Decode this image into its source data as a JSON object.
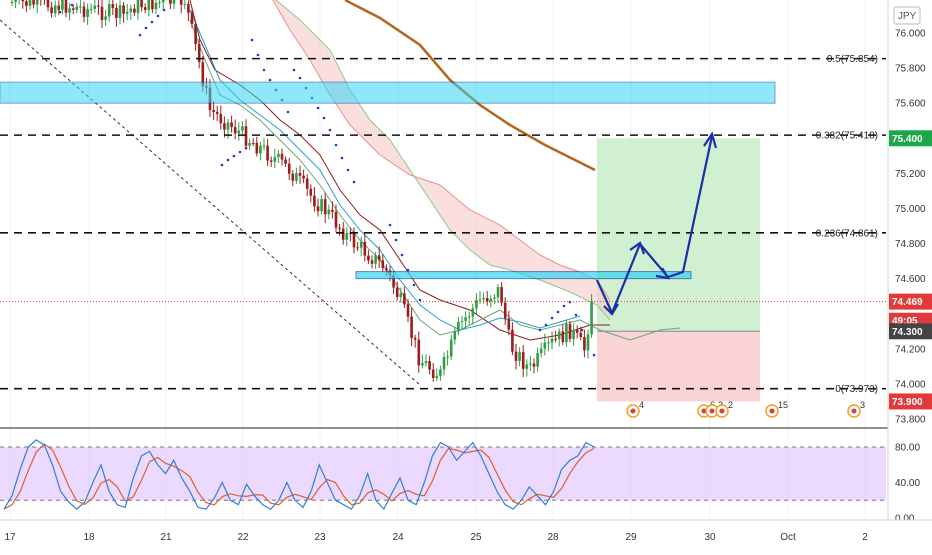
{
  "chart_data": {
    "type": "candlestick",
    "currency_badge": "JPY",
    "main_panel": {
      "ylim": [
        73.8,
        76.15
      ],
      "y_ticks": [
        "76.000",
        "75.800",
        "75.600",
        "75.400",
        "75.200",
        "75.000",
        "74.800",
        "74.600",
        "74.200",
        "74.000",
        "73.800"
      ],
      "x_days": [
        "17",
        "18",
        "21",
        "22",
        "23",
        "24",
        "25",
        "28",
        "29",
        "30",
        "Oct",
        "2"
      ],
      "fib_levels": [
        {
          "label": "0.5(75.854)",
          "value": 75.854
        },
        {
          "label": "0.382(75.418)",
          "value": 75.418
        },
        {
          "label": "0.236(74.861)",
          "value": 74.861
        },
        {
          "label": "0(73.973)",
          "value": 73.973
        }
      ],
      "resistance_zone": {
        "top": 75.72,
        "bottom": 75.6
      },
      "support_zone": {
        "top": 74.64,
        "bottom": 74.6
      },
      "long_position": {
        "entry": 74.3,
        "target": 75.4,
        "stop": 73.9
      },
      "price_tags": [
        {
          "text": "75.400",
          "value": 75.4,
          "color": "#1ba74a"
        },
        {
          "text": "74.469",
          "value": 74.469,
          "color": "#e03a3a"
        },
        {
          "text": "49:05",
          "value": 74.36,
          "color": "#e03a3a"
        },
        {
          "text": "74.300",
          "value": 74.3,
          "color": "#444444"
        },
        {
          "text": "73.900",
          "value": 73.9,
          "color": "#e03a3a"
        }
      ],
      "last_price": 74.469,
      "event_markers": [
        {
          "x": 641,
          "count": "4"
        },
        {
          "x": 712,
          "count": "6"
        },
        {
          "x": 720,
          "count": "3"
        },
        {
          "x": 730,
          "count": "2"
        },
        {
          "x": 780,
          "count": "15"
        },
        {
          "x": 862,
          "count": "3"
        }
      ]
    },
    "oscillator_panel": {
      "ylim": [
        0,
        100
      ],
      "y_ticks": [
        "80.00",
        "40.00",
        "0.00"
      ],
      "overbought": 80,
      "oversold": 20,
      "band_color": "#d9b3ff"
    },
    "colors": {
      "bull": "#2e9e47",
      "bear": "#9b1d1d",
      "ma": "#b5651d",
      "fib_line": "#111111",
      "zone": "#33d6f5",
      "projection": "#1a2fa8",
      "k_line": "#2f7fd8",
      "d_line": "#e0602a"
    }
  }
}
